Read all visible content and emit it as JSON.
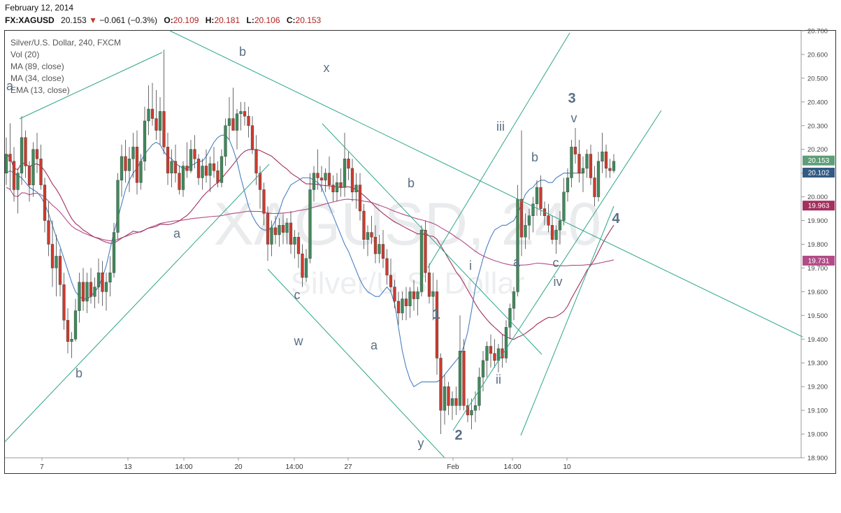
{
  "header": {
    "date": "February 12, 2014",
    "symbol": "FX:XAGUSD",
    "last": "20.153",
    "change": "−0.061 (−0.3%)",
    "o_label": "O:",
    "o": "20.109",
    "h_label": "H:",
    "h": "20.181",
    "l_label": "L:",
    "l": "20.106",
    "c_label": "C:",
    "c": "20.153"
  },
  "indicators": {
    "title": "Silver/U.S. Dollar, 240, FXCM",
    "vol": "Vol (20)",
    "ma89": "MA (89, close)",
    "ma34": "MA (34, close)",
    "ema13": "EMA (13, close)"
  },
  "watermark": {
    "big": "XAGUSD, 240",
    "small": "Silver/U.S. Dollar"
  },
  "colors": {
    "up": "#3f8a5a",
    "down": "#cc3b2e",
    "trendline": "#2ea58a",
    "ema13": "#4a7fc0",
    "ma34": "#a3305f",
    "ma89": "#b24b87",
    "price_tag": "#5f9e78",
    "ema_tag": "#335a82",
    "ma34_tag": "#a3305f",
    "ma89_tag": "#b24b87"
  },
  "chart_data": {
    "type": "candlestick",
    "ylim": [
      18.9,
      20.7
    ],
    "yticks": [
      "20.700",
      "20.600",
      "20.500",
      "20.400",
      "20.300",
      "20.200",
      "20.100",
      "20.000",
      "19.900",
      "19.800",
      "19.700",
      "19.600",
      "19.500",
      "19.400",
      "19.300",
      "19.200",
      "19.100",
      "19.000",
      "18.900"
    ],
    "xticks": [
      "7",
      "13",
      "14:00",
      "20",
      "14:00",
      "27",
      "Feb",
      "14:00",
      "10"
    ],
    "price_tags": {
      "last": "20.153",
      "ema13": "20.102",
      "ma34": "19.963",
      "ma89": "19.731"
    },
    "wave_labels": [
      "a",
      "b",
      "b",
      "x",
      "a",
      "c",
      "w",
      "b",
      "a",
      "y",
      "1",
      "2",
      "i",
      "ii",
      "iii",
      "a",
      "b",
      "c",
      "iv",
      "3",
      "v",
      "4"
    ],
    "candles": [
      [
        20.1,
        20.25,
        20.05,
        20.18
      ],
      [
        20.18,
        20.31,
        20.03,
        20.15
      ],
      [
        20.15,
        20.21,
        19.98,
        20.03
      ],
      [
        20.03,
        20.12,
        19.93,
        20.1
      ],
      [
        20.1,
        20.34,
        20.05,
        20.25
      ],
      [
        20.25,
        20.28,
        20.08,
        20.13
      ],
      [
        20.13,
        20.15,
        19.98,
        20.05
      ],
      [
        20.05,
        20.23,
        20.0,
        20.2
      ],
      [
        20.2,
        20.27,
        20.1,
        20.16
      ],
      [
        20.16,
        20.22,
        20.03,
        20.05
      ],
      [
        20.05,
        20.08,
        19.85,
        19.9
      ],
      [
        19.9,
        19.98,
        19.75,
        19.8
      ],
      [
        19.8,
        19.9,
        19.62,
        19.7
      ],
      [
        19.7,
        19.84,
        19.58,
        19.75
      ],
      [
        19.75,
        19.78,
        19.58,
        19.63
      ],
      [
        19.63,
        19.68,
        19.44,
        19.48
      ],
      [
        19.48,
        19.53,
        19.34,
        19.39
      ],
      [
        19.39,
        19.43,
        19.32,
        19.4
      ],
      [
        19.4,
        19.57,
        19.39,
        19.52
      ],
      [
        19.52,
        19.68,
        19.47,
        19.64
      ],
      [
        19.64,
        19.7,
        19.52,
        19.56
      ],
      [
        19.56,
        19.68,
        19.51,
        19.64
      ],
      [
        19.64,
        19.7,
        19.55,
        19.58
      ],
      [
        19.58,
        19.66,
        19.53,
        19.62
      ],
      [
        19.62,
        19.74,
        19.55,
        19.68
      ],
      [
        19.68,
        19.73,
        19.54,
        19.6
      ],
      [
        19.6,
        19.68,
        19.52,
        19.64
      ],
      [
        19.64,
        19.75,
        19.58,
        19.68
      ],
      [
        19.68,
        19.89,
        19.66,
        19.85
      ],
      [
        19.85,
        20.1,
        19.82,
        20.07
      ],
      [
        20.07,
        20.22,
        20.0,
        20.17
      ],
      [
        20.17,
        20.24,
        20.06,
        20.11
      ],
      [
        20.11,
        20.21,
        20.02,
        20.16
      ],
      [
        20.16,
        20.27,
        20.08,
        20.21
      ],
      [
        20.21,
        20.28,
        20.01,
        20.06
      ],
      [
        20.06,
        20.18,
        20.03,
        20.15
      ],
      [
        20.15,
        20.38,
        20.11,
        20.32
      ],
      [
        20.32,
        20.47,
        20.26,
        20.37
      ],
      [
        20.37,
        20.48,
        20.3,
        20.33
      ],
      [
        20.33,
        20.45,
        20.24,
        20.28
      ],
      [
        20.28,
        20.42,
        20.22,
        20.36
      ],
      [
        20.36,
        20.62,
        20.18,
        20.21
      ],
      [
        20.21,
        20.27,
        20.05,
        20.1
      ],
      [
        20.1,
        20.2,
        20.04,
        20.15
      ],
      [
        20.15,
        20.22,
        20.06,
        20.1
      ],
      [
        20.1,
        20.13,
        20.01,
        20.03
      ],
      [
        20.03,
        20.15,
        20.0,
        20.13
      ],
      [
        20.13,
        20.23,
        20.08,
        20.11
      ],
      [
        20.11,
        20.24,
        20.1,
        20.2
      ],
      [
        20.2,
        20.26,
        20.12,
        20.16
      ],
      [
        20.16,
        20.18,
        20.05,
        20.08
      ],
      [
        20.08,
        20.16,
        20.03,
        20.13
      ],
      [
        20.13,
        20.2,
        20.06,
        20.09
      ],
      [
        20.09,
        20.17,
        20.02,
        20.14
      ],
      [
        20.14,
        20.21,
        20.08,
        20.11
      ],
      [
        20.11,
        20.15,
        20.04,
        20.06
      ],
      [
        20.06,
        20.2,
        20.04,
        20.17
      ],
      [
        20.17,
        20.33,
        20.13,
        20.3
      ],
      [
        20.3,
        20.42,
        20.24,
        20.33
      ],
      [
        20.33,
        20.46,
        20.28,
        20.28
      ],
      [
        20.28,
        20.37,
        20.2,
        20.35
      ],
      [
        20.35,
        20.4,
        20.28,
        20.36
      ],
      [
        20.36,
        20.4,
        20.3,
        20.34
      ],
      [
        20.34,
        20.38,
        20.25,
        20.3
      ],
      [
        20.3,
        20.34,
        20.18,
        20.2
      ],
      [
        20.2,
        20.26,
        20.05,
        20.1
      ],
      [
        20.1,
        20.13,
        19.95,
        20.03
      ],
      [
        20.03,
        20.06,
        19.88,
        19.93
      ],
      [
        19.93,
        19.96,
        19.73,
        19.8
      ],
      [
        19.8,
        19.9,
        19.75,
        19.87
      ],
      [
        19.87,
        19.92,
        19.8,
        19.84
      ],
      [
        19.84,
        19.91,
        19.79,
        19.88
      ],
      [
        19.88,
        19.93,
        19.8,
        19.85
      ],
      [
        19.85,
        19.91,
        19.8,
        19.89
      ],
      [
        19.89,
        19.94,
        19.76,
        19.8
      ],
      [
        19.8,
        19.86,
        19.74,
        19.83
      ],
      [
        19.83,
        19.85,
        19.7,
        19.76
      ],
      [
        19.76,
        19.8,
        19.62,
        19.66
      ],
      [
        19.66,
        19.78,
        19.64,
        19.74
      ],
      [
        19.74,
        20.1,
        19.72,
        20.03
      ],
      [
        20.03,
        20.13,
        19.98,
        20.1
      ],
      [
        20.1,
        20.2,
        20.03,
        20.08
      ],
      [
        20.08,
        20.13,
        20.02,
        20.07
      ],
      [
        20.07,
        20.12,
        20.02,
        20.1
      ],
      [
        20.1,
        20.17,
        20.03,
        20.05
      ],
      [
        20.05,
        20.09,
        19.98,
        20.02
      ],
      [
        20.02,
        20.1,
        19.98,
        20.06
      ],
      [
        20.06,
        20.12,
        20.0,
        20.04
      ],
      [
        20.04,
        20.27,
        20.0,
        20.16
      ],
      [
        20.16,
        20.19,
        20.07,
        20.12
      ],
      [
        20.12,
        20.16,
        19.98,
        20.02
      ],
      [
        20.02,
        20.1,
        19.95,
        20.05
      ],
      [
        20.05,
        20.1,
        19.9,
        19.94
      ],
      [
        19.94,
        19.97,
        19.78,
        19.82
      ],
      [
        19.82,
        19.88,
        19.75,
        19.85
      ],
      [
        19.85,
        19.92,
        19.8,
        19.83
      ],
      [
        19.83,
        19.88,
        19.72,
        19.76
      ],
      [
        19.76,
        19.84,
        19.72,
        19.8
      ],
      [
        19.8,
        19.86,
        19.7,
        19.74
      ],
      [
        19.74,
        19.78,
        19.63,
        19.67
      ],
      [
        19.67,
        19.74,
        19.6,
        19.62
      ],
      [
        19.62,
        19.65,
        19.53,
        19.56
      ],
      [
        19.56,
        19.6,
        19.46,
        19.51
      ],
      [
        19.51,
        19.6,
        19.48,
        19.57
      ],
      [
        19.57,
        19.62,
        19.48,
        19.54
      ],
      [
        19.54,
        19.62,
        19.49,
        19.6
      ],
      [
        19.6,
        19.65,
        19.52,
        19.57
      ],
      [
        19.57,
        19.62,
        19.5,
        19.6
      ],
      [
        19.6,
        19.88,
        19.58,
        19.86
      ],
      [
        19.86,
        19.9,
        19.64,
        19.68
      ],
      [
        19.68,
        19.72,
        19.55,
        19.58
      ],
      [
        19.58,
        19.68,
        19.48,
        19.6
      ],
      [
        19.6,
        19.65,
        19.25,
        19.32
      ],
      [
        19.32,
        19.34,
        19.0,
        19.1
      ],
      [
        19.1,
        19.25,
        19.04,
        19.2
      ],
      [
        19.2,
        19.22,
        19.08,
        19.12
      ],
      [
        19.12,
        19.18,
        19.06,
        19.15
      ],
      [
        19.15,
        19.2,
        19.08,
        19.12
      ],
      [
        19.12,
        19.5,
        19.1,
        19.35
      ],
      [
        19.35,
        19.4,
        19.1,
        19.12
      ],
      [
        19.12,
        19.15,
        19.05,
        19.08
      ],
      [
        19.08,
        19.15,
        19.02,
        19.1
      ],
      [
        19.1,
        19.18,
        19.05,
        19.12
      ],
      [
        19.12,
        19.28,
        19.1,
        19.24
      ],
      [
        19.24,
        19.35,
        19.18,
        19.31
      ],
      [
        19.31,
        19.39,
        19.24,
        19.37
      ],
      [
        19.37,
        19.42,
        19.28,
        19.34
      ],
      [
        19.34,
        19.4,
        19.28,
        19.31
      ],
      [
        19.31,
        19.38,
        19.26,
        19.36
      ],
      [
        19.36,
        19.42,
        19.28,
        19.32
      ],
      [
        19.32,
        19.48,
        19.3,
        19.45
      ],
      [
        19.45,
        19.55,
        19.4,
        19.53
      ],
      [
        19.53,
        19.62,
        19.48,
        19.6
      ],
      [
        19.6,
        20.05,
        19.58,
        19.99
      ],
      [
        19.99,
        20.28,
        19.75,
        19.83
      ],
      [
        19.83,
        19.93,
        19.78,
        19.88
      ],
      [
        19.88,
        19.95,
        19.82,
        19.92
      ],
      [
        19.92,
        20.0,
        19.85,
        19.97
      ],
      [
        19.97,
        20.07,
        19.92,
        20.04
      ],
      [
        20.04,
        20.09,
        19.92,
        19.95
      ],
      [
        19.95,
        19.98,
        19.88,
        19.92
      ],
      [
        19.92,
        19.97,
        19.85,
        19.88
      ],
      [
        19.88,
        19.92,
        19.8,
        19.82
      ],
      [
        19.82,
        19.88,
        19.76,
        19.86
      ],
      [
        19.86,
        19.94,
        19.8,
        19.9
      ],
      [
        19.9,
        20.08,
        19.88,
        20.02
      ],
      [
        20.02,
        20.12,
        19.98,
        20.08
      ],
      [
        20.08,
        20.24,
        20.04,
        20.21
      ],
      [
        20.21,
        20.29,
        20.14,
        20.18
      ],
      [
        20.18,
        20.24,
        20.06,
        20.1
      ],
      [
        20.1,
        20.17,
        20.02,
        20.12
      ],
      [
        20.12,
        20.2,
        20.08,
        20.18
      ],
      [
        20.18,
        20.22,
        20.05,
        20.08
      ],
      [
        20.08,
        20.13,
        19.96,
        20.0
      ],
      [
        20.0,
        20.19,
        19.98,
        20.15
      ],
      [
        20.15,
        20.27,
        20.1,
        20.19
      ],
      [
        20.19,
        20.22,
        20.08,
        20.12
      ],
      [
        20.12,
        20.16,
        20.08,
        20.11
      ],
      [
        20.11,
        20.18,
        20.1,
        20.15
      ]
    ],
    "ema13": [
      20.1,
      20.11,
      20.1,
      20.09,
      20.08,
      20.06,
      20.04,
      20.03,
      20.02,
      20.0,
      19.97,
      19.93,
      19.88,
      19.83,
      19.79,
      19.74,
      19.69,
      19.64,
      19.6,
      19.58,
      19.57,
      19.57,
      19.58,
      19.6,
      19.62,
      19.66,
      19.71,
      19.78,
      19.85,
      19.91,
      19.97,
      20.03,
      20.07,
      20.1,
      20.12,
      20.15,
      20.18,
      20.2,
      20.22,
      20.23,
      20.22,
      20.19,
      20.17,
      20.16,
      20.14,
      20.13,
      20.12,
      20.12,
      20.13,
      20.14,
      20.15,
      20.15,
      20.17,
      20.2,
      20.23,
      20.25,
      20.26,
      20.26,
      20.24,
      20.2,
      20.15,
      20.08,
      20.02,
      19.96,
      19.92,
      19.89,
      19.87,
      19.86,
      19.86,
      19.87,
      19.9,
      19.94,
      19.99,
      20.02,
      20.05,
      20.06,
      20.07,
      20.08,
      20.08,
      20.08,
      20.07,
      20.06,
      20.04,
      20.0,
      19.96,
      19.92,
      19.88,
      19.84,
      19.8,
      19.77,
      19.73,
      19.69,
      19.65,
      19.62,
      19.6,
      19.59,
      19.58,
      19.58,
      19.6,
      19.62,
      19.6,
      19.55,
      19.45,
      19.35,
      19.28,
      19.23,
      19.2,
      19.21,
      19.22,
      19.22,
      19.22,
      19.22,
      19.22,
      19.23,
      19.25,
      19.27,
      19.29,
      19.31,
      19.33,
      19.37,
      19.43,
      19.52,
      19.62,
      19.68,
      19.74,
      19.79,
      19.83,
      19.86,
      19.87,
      19.88,
      19.88,
      19.89,
      19.9,
      19.93,
      19.97,
      20.01,
      20.03,
      20.04,
      20.06,
      20.07,
      20.07,
      20.06,
      20.06,
      20.08,
      20.09,
      20.1,
      20.1,
      20.1,
      20.1,
      20.1,
      20.1
    ]
  }
}
